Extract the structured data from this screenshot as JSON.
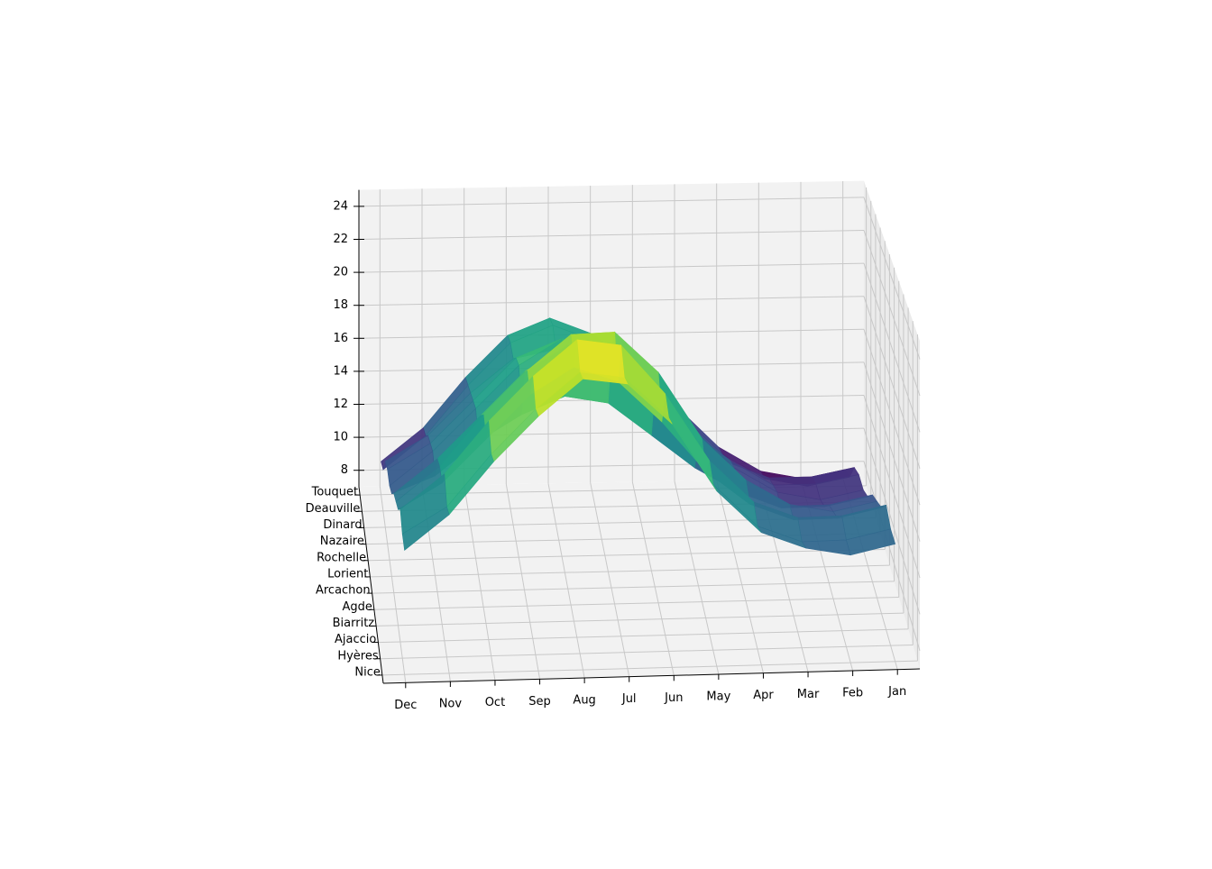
{
  "chart_data": {
    "type": "surface",
    "categories": [
      "Jan",
      "Feb",
      "Mar",
      "Apr",
      "May",
      "Jun",
      "Jul",
      "Aug",
      "Sep",
      "Oct",
      "Nov",
      "Dec"
    ],
    "series": [
      {
        "name": "Nice",
        "values": [
          13.5,
          13,
          13.5,
          14.5,
          17,
          21,
          23.5,
          24,
          22,
          19.5,
          16.5,
          14.5
        ]
      },
      {
        "name": "Hyères",
        "values": [
          13.5,
          13,
          13,
          14,
          16.5,
          20.5,
          23,
          23.5,
          21.5,
          19,
          16,
          14.5
        ]
      },
      {
        "name": "Ajaccio",
        "values": [
          14,
          13.5,
          13.5,
          14.5,
          17,
          21,
          24,
          24.5,
          22.5,
          20,
          17,
          15
        ]
      },
      {
        "name": "Biarritz",
        "values": [
          13,
          12.5,
          12.5,
          13.5,
          15.5,
          18.5,
          21,
          22,
          20.5,
          18,
          15.5,
          14
        ]
      },
      {
        "name": "Agde",
        "values": [
          12.5,
          12,
          12.5,
          14,
          16.5,
          20.5,
          23,
          23,
          21,
          18.5,
          15.5,
          13.5
        ]
      },
      {
        "name": "Arcachon",
        "values": [
          12,
          11.5,
          11.5,
          13,
          15.5,
          18.5,
          21,
          21.5,
          20,
          17.5,
          15,
          13
        ]
      },
      {
        "name": "Lorient",
        "values": [
          11,
          10.5,
          10.5,
          11.5,
          13,
          15,
          17,
          17.5,
          16.5,
          15,
          13,
          12
        ]
      },
      {
        "name": "Rochelle",
        "values": [
          10.5,
          10,
          10.5,
          12,
          14.5,
          17.5,
          19.5,
          20,
          18.5,
          16,
          13.5,
          11.5
        ]
      },
      {
        "name": "Nazaire",
        "values": [
          10.5,
          10,
          10,
          11.5,
          13.5,
          16.5,
          18.5,
          19,
          18,
          15.5,
          13,
          11.5
        ]
      },
      {
        "name": "Dinard",
        "values": [
          10,
          9.5,
          9.5,
          10.5,
          12.5,
          14.5,
          16.5,
          17.5,
          17,
          15,
          12.5,
          11
        ]
      },
      {
        "name": "Deauville",
        "values": [
          8.5,
          8,
          8.5,
          10,
          12.5,
          15,
          17,
          18,
          17,
          14.5,
          11.5,
          9.5
        ]
      },
      {
        "name": "Touquet",
        "values": [
          8,
          7.5,
          8,
          9.5,
          12,
          14.5,
          16.5,
          17.5,
          16.5,
          14,
          11,
          9
        ]
      }
    ],
    "zlim": [
      7,
      25
    ],
    "zticks": [
      8,
      10,
      12,
      14,
      16,
      18,
      20,
      22,
      24
    ],
    "colormap": "viridis",
    "grid": true
  }
}
